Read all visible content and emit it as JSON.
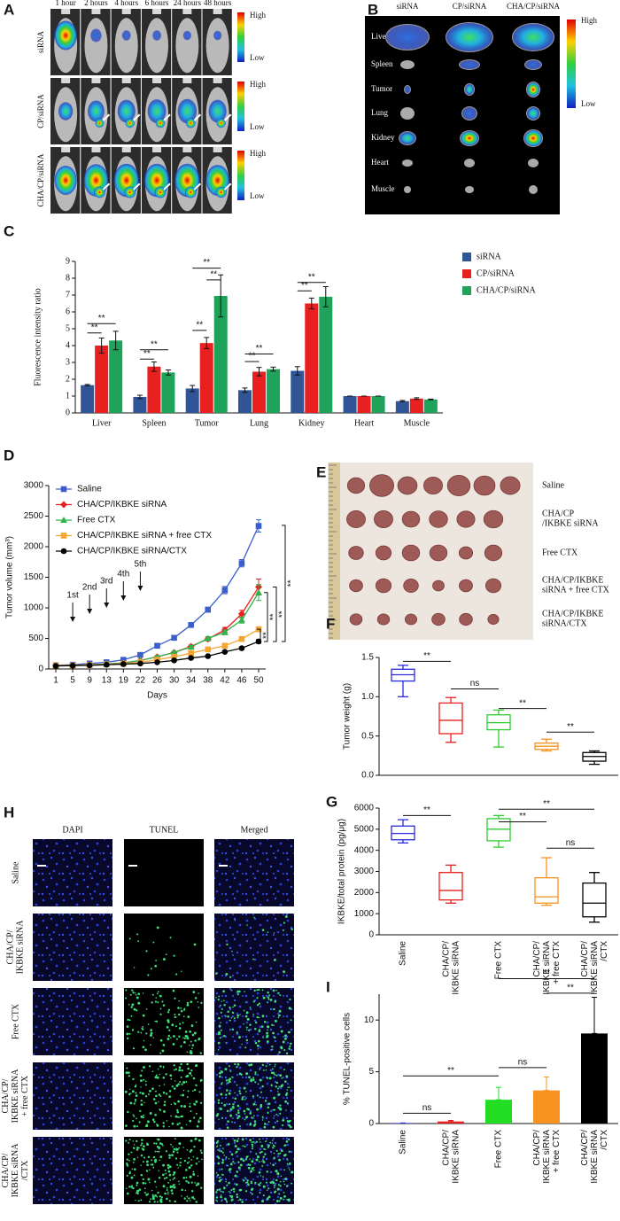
{
  "figure": {
    "a": {
      "letter": "A",
      "columns": [
        "1 hour",
        "2 hours",
        "4 hours",
        "6 hours",
        "24 hours",
        "48 hours"
      ],
      "rows": [
        "siRNA",
        "CP/siRNA",
        "CHA/CP/siRNA"
      ],
      "scale": [
        "High",
        "Low"
      ]
    },
    "b": {
      "letter": "B",
      "columns": [
        "siRNA",
        "CP/siRNA",
        "CHA/CP/siRNA"
      ],
      "rows": [
        "Liver",
        "Spleen",
        "Tumor",
        "Lung",
        "Kidney",
        "Heart",
        "Muscle"
      ],
      "scale": [
        "High",
        "Low"
      ]
    },
    "e": {
      "letter": "E",
      "rows": [
        "Saline",
        "CHA/CP\n/IKBKE siRNA",
        "Free CTX",
        "CHA/CP/IKBKE\nsiRNA + free CTX",
        "CHA/CP/IKBKE\nsiRNA/CTX"
      ]
    },
    "h": {
      "letter": "H",
      "columns": [
        "DAPI",
        "TUNEL",
        "Merged"
      ],
      "column_colors": [
        "#1f3fa8",
        "#2fb34a",
        "#222222"
      ],
      "rows": [
        "Saline",
        "CHA/CP/\nIKBKE siRNA",
        "Free CTX",
        "CHA/CP/\nIKBKE siRNA\n+ free CTX",
        "CHA/CP/\nIKBKE siRNA\n/CTX"
      ]
    }
  },
  "chart_data": [
    {
      "letter": "C",
      "type": "bar",
      "ylabel": "Fluorescence intensity ratio",
      "categories": [
        "Liver",
        "Spleen",
        "Tumor",
        "Lung",
        "Kidney",
        "Heart",
        "Muscle"
      ],
      "series": [
        {
          "name": "siRNA",
          "color": "#2f5597",
          "values": [
            1.65,
            0.95,
            1.45,
            1.35,
            2.5,
            1.0,
            0.7
          ],
          "errors": [
            0.04,
            0.1,
            0.18,
            0.13,
            0.25,
            0,
            0.04
          ]
        },
        {
          "name": "CP/siRNA",
          "color": "#e8201f",
          "values": [
            4.0,
            2.75,
            4.15,
            2.45,
            6.5,
            1.0,
            0.85
          ],
          "errors": [
            0.45,
            0.28,
            0.33,
            0.25,
            0.32,
            0,
            0.05
          ]
        },
        {
          "name": "CHA/CP/siRNA",
          "color": "#1fa25a",
          "values": [
            4.3,
            2.4,
            6.95,
            2.6,
            6.9,
            1.0,
            0.8
          ],
          "errors": [
            0.55,
            0.15,
            1.25,
            0.12,
            0.6,
            0,
            0.02
          ]
        }
      ],
      "ylim": [
        0,
        9
      ],
      "yticks": [
        0,
        1,
        2,
        3,
        4,
        5,
        6,
        7,
        8,
        9
      ],
      "legend": "right",
      "annotations": [
        "**",
        "**",
        "**",
        "**",
        "**",
        "**",
        "**",
        "**",
        "**",
        "**",
        "**"
      ]
    },
    {
      "letter": "D",
      "type": "line",
      "xlabel": "Days",
      "ylabel": "Tumor volume (mm³)",
      "categories": [
        "1",
        "5",
        "9",
        "13",
        "19",
        "22",
        "26",
        "30",
        "34",
        "38",
        "42",
        "46",
        "50"
      ],
      "series": [
        {
          "name": "Saline",
          "color": "#3a5fcd",
          "marker": "square",
          "values": [
            60,
            70,
            90,
            110,
            150,
            230,
            380,
            510,
            720,
            970,
            1290,
            1730,
            2340
          ],
          "errors": [
            5,
            5,
            5,
            5,
            8,
            10,
            15,
            25,
            35,
            40,
            60,
            60,
            100
          ]
        },
        {
          "name": "CHA/CP/IKBKE siRNA",
          "color": "#e8201f",
          "marker": "diamond",
          "values": [
            55,
            60,
            70,
            80,
            100,
            140,
            200,
            270,
            370,
            490,
            640,
            900,
            1340
          ],
          "errors": [
            5,
            5,
            5,
            5,
            5,
            8,
            10,
            15,
            20,
            30,
            40,
            60,
            130
          ]
        },
        {
          "name": "Free CTX",
          "color": "#2fb34a",
          "marker": "triangle",
          "values": [
            55,
            60,
            70,
            80,
            100,
            140,
            200,
            270,
            360,
            500,
            600,
            800,
            1250
          ],
          "errors": [
            5,
            5,
            5,
            5,
            5,
            8,
            10,
            15,
            20,
            30,
            40,
            50,
            130
          ]
        },
        {
          "name": "CHA/CP/IKBKE siRNA + free CTX",
          "color": "#f7a531",
          "marker": "square",
          "values": [
            55,
            58,
            65,
            75,
            85,
            110,
            150,
            200,
            260,
            320,
            380,
            490,
            650
          ],
          "errors": [
            5,
            5,
            5,
            5,
            5,
            5,
            8,
            10,
            15,
            15,
            20,
            30,
            40
          ]
        },
        {
          "name": "CHA/CP/IKBKE siRNA/CTX",
          "color": "#000000",
          "marker": "circle",
          "values": [
            50,
            55,
            60,
            70,
            80,
            90,
            110,
            140,
            180,
            210,
            280,
            340,
            450
          ],
          "errors": [
            5,
            5,
            5,
            5,
            5,
            5,
            5,
            8,
            10,
            10,
            15,
            20,
            30
          ]
        }
      ],
      "ylim": [
        0,
        3000
      ],
      "yticks": [
        0,
        500,
        1000,
        1500,
        2000,
        2500,
        3000
      ],
      "legend": "upper left",
      "treatments": [
        "1st",
        "2nd",
        "3rd",
        "4th",
        "5th"
      ],
      "annotations": [
        "**",
        "**",
        "**",
        "**"
      ]
    },
    {
      "letter": "F",
      "type": "box",
      "ylabel": "Tumor weight (g)",
      "boxes": [
        {
          "color": "#2a2ae0",
          "min": 1.0,
          "q1": 1.2,
          "median": 1.28,
          "q3": 1.35,
          "max": 1.4
        },
        {
          "color": "#e8201f",
          "min": 0.42,
          "q1": 0.53,
          "median": 0.7,
          "q3": 0.92,
          "max": 0.99
        },
        {
          "color": "#2fcd2f",
          "min": 0.36,
          "q1": 0.58,
          "median": 0.67,
          "q3": 0.77,
          "max": 0.83
        },
        {
          "color": "#f7931e",
          "min": 0.31,
          "q1": 0.33,
          "median": 0.37,
          "q3": 0.41,
          "max": 0.46
        },
        {
          "color": "#000000",
          "min": 0.14,
          "q1": 0.18,
          "median": 0.24,
          "q3": 0.29,
          "max": 0.31
        }
      ],
      "ylim": [
        0,
        1.5
      ],
      "yticks": [
        {
          "value": 0,
          "label": "0.0"
        },
        {
          "value": 0.5,
          "label": "0.5"
        },
        {
          "value": 1,
          "label": "1.0"
        },
        {
          "value": 1.5,
          "label": "1.5"
        }
      ],
      "annotations": [
        "**",
        "ns",
        "**",
        "**"
      ]
    },
    {
      "letter": "G",
      "type": "box",
      "ylabel": "IKBKE/total protein (pg/μg)",
      "categories": [
        "Saline",
        "CHA/CP/\nIKBKE siRNA",
        "Free CTX",
        "CHA/CP/\nIKBKE siRNA\n+ free CTX",
        "CHA/CP/\nIKBKE siRNA\n/CTX"
      ],
      "boxes": [
        {
          "color": "#2a2ae0",
          "min": 4350,
          "q1": 4500,
          "median": 4800,
          "q3": 5150,
          "max": 5450
        },
        {
          "color": "#e8201f",
          "min": 1500,
          "q1": 1650,
          "median": 2100,
          "q3": 2950,
          "max": 3300
        },
        {
          "color": "#2fcd2f",
          "min": 4150,
          "q1": 4450,
          "median": 5000,
          "q3": 5500,
          "max": 5650
        },
        {
          "color": "#f7931e",
          "min": 1400,
          "q1": 1500,
          "median": 1800,
          "q3": 2700,
          "max": 3650
        },
        {
          "color": "#000000",
          "min": 600,
          "q1": 850,
          "median": 1500,
          "q3": 2450,
          "max": 2950
        }
      ],
      "ylim": [
        0,
        6000
      ],
      "yticks": [
        0,
        1000,
        2000,
        3000,
        4000,
        5000,
        6000
      ],
      "annotations": [
        "**",
        "**",
        "**",
        "ns"
      ]
    },
    {
      "letter": "I",
      "type": "bar",
      "ylabel": "% TUNEL-positive cells",
      "categories": [
        "Saline",
        "CHA/CP/\nIKBKE siRNA",
        "Free CTX",
        "CHA/CP/\nIKBKE siRNA\n+ free CTX",
        "CHA/CP/\nIKBKE siRNA\n/CTX"
      ],
      "values": [
        0.05,
        0.2,
        2.3,
        3.2,
        8.7
      ],
      "errors": [
        0,
        0.1,
        1.2,
        1.3,
        3.5
      ],
      "colors": [
        "#2a2ae0",
        "#e8201f",
        "#22dd22",
        "#f7931e",
        "#000000"
      ],
      "ylim": [
        0,
        12.5
      ],
      "yticks": [
        0,
        5,
        10
      ],
      "annotations": [
        "ns",
        "**",
        "ns",
        "**",
        "**"
      ]
    }
  ]
}
